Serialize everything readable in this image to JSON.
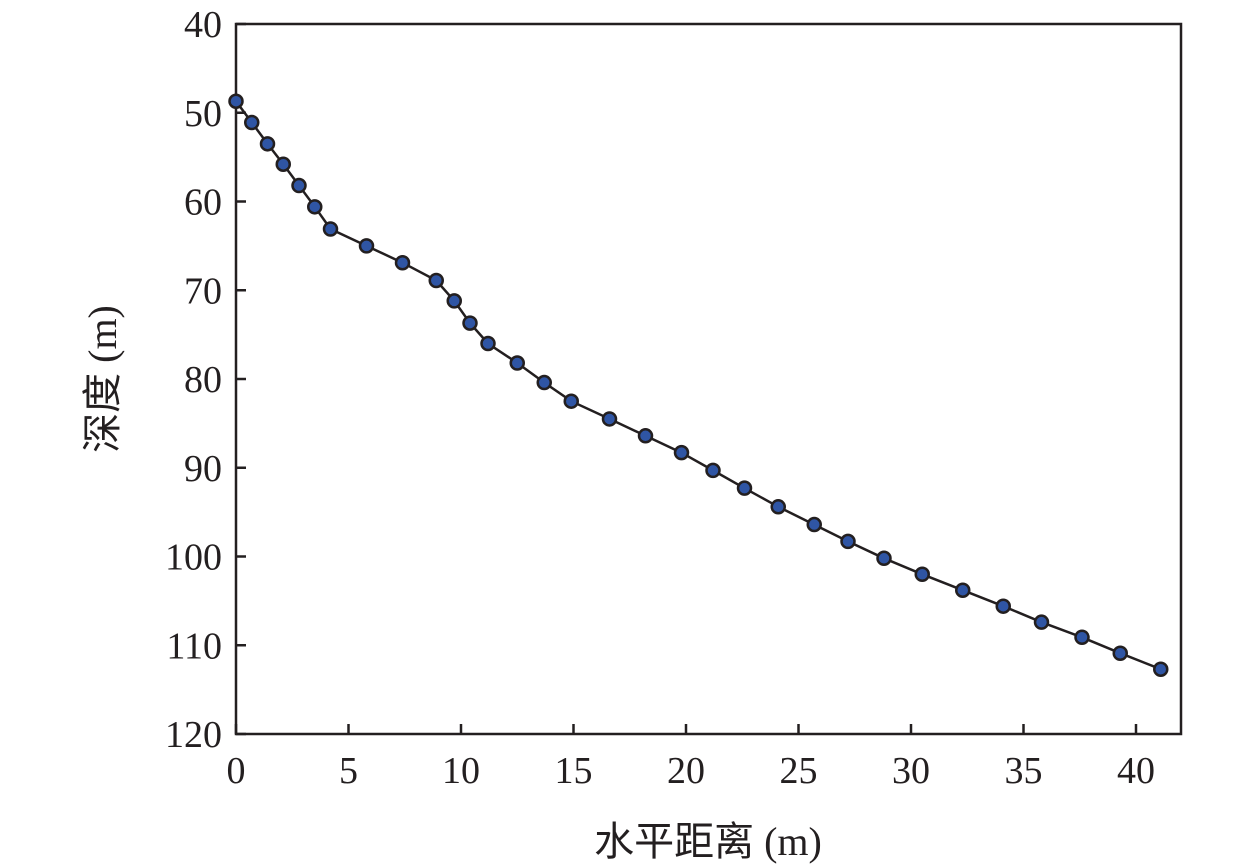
{
  "chart_data": {
    "type": "line",
    "title": "",
    "xlabel": "水平距离 (m)",
    "ylabel": "深度 (m)",
    "xlim": [
      0,
      42
    ],
    "ylim": [
      40,
      120
    ],
    "y_inverted": true,
    "x_ticks": [
      0,
      5,
      10,
      15,
      20,
      25,
      30,
      35,
      40
    ],
    "y_ticks": [
      40,
      50,
      60,
      70,
      80,
      90,
      100,
      110,
      120
    ],
    "grid": false,
    "legend": "none",
    "marker_color": "#2f55a4",
    "line_color": "#231f20",
    "series": [
      {
        "x": [
          0,
          0.7,
          1.4,
          2.1,
          2.8,
          3.5,
          4.2,
          5.8,
          7.4,
          8.9,
          9.7,
          10.4,
          11.2,
          12.5,
          13.7,
          14.9,
          16.6,
          18.2,
          19.8,
          21.2,
          22.6,
          24.1,
          25.7,
          27.2,
          28.8,
          30.5,
          32.3,
          34.1,
          35.8,
          37.6,
          39.3,
          41.1
        ],
        "y": [
          48.7,
          51.1,
          53.5,
          55.8,
          58.2,
          60.6,
          63.1,
          65.0,
          66.9,
          68.9,
          71.2,
          73.7,
          76.0,
          78.2,
          80.4,
          82.5,
          84.5,
          86.4,
          88.3,
          90.3,
          92.3,
          94.4,
          96.4,
          98.3,
          100.2,
          102.0,
          103.8,
          105.6,
          107.4,
          109.1,
          110.9,
          112.7
        ]
      }
    ]
  }
}
